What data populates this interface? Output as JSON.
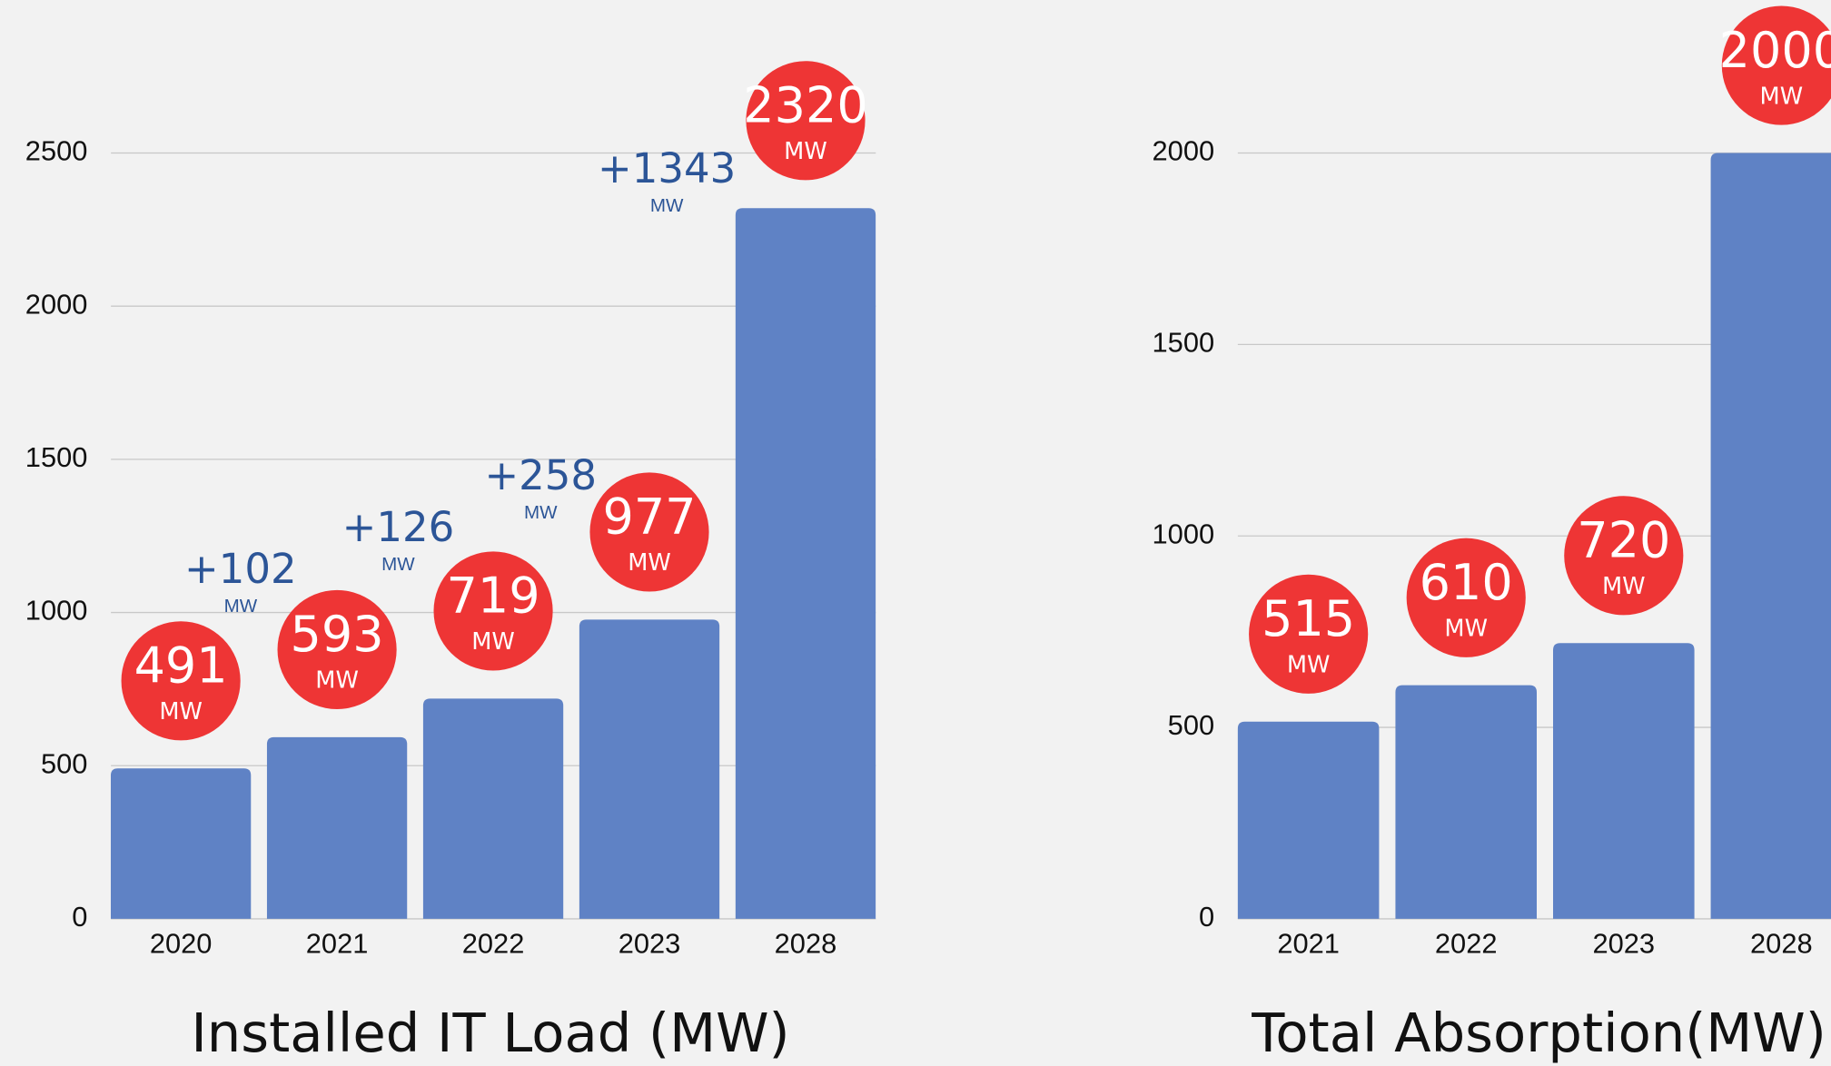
{
  "chart_data": [
    {
      "type": "bar",
      "title": "Installed IT Load (MW)",
      "categories": [
        "2020",
        "2021",
        "2022",
        "2023",
        "2028"
      ],
      "values": [
        491,
        593,
        719,
        977,
        2320
      ],
      "unit": "MW",
      "annotations": [
        "+102",
        "+126",
        "+258",
        "+1343"
      ],
      "color": "#5f82c5",
      "label_color": "#ee3535",
      "annotation_color": "#2c5597",
      "ylim": [
        0,
        2500
      ],
      "yticks": [
        0,
        500,
        1000,
        1500,
        2000,
        2500
      ],
      "grid": true
    },
    {
      "type": "bar",
      "title": "Total Absorption(MW)",
      "categories": [
        "2021",
        "2022",
        "2023",
        "2028"
      ],
      "values": [
        515,
        610,
        720,
        2000
      ],
      "unit": "MW",
      "color": "#5f82c5",
      "label_color": "#ee3535",
      "ylim": [
        0,
        2000
      ],
      "yticks": [
        0,
        500,
        1000,
        1500,
        2000
      ],
      "grid": true
    }
  ]
}
